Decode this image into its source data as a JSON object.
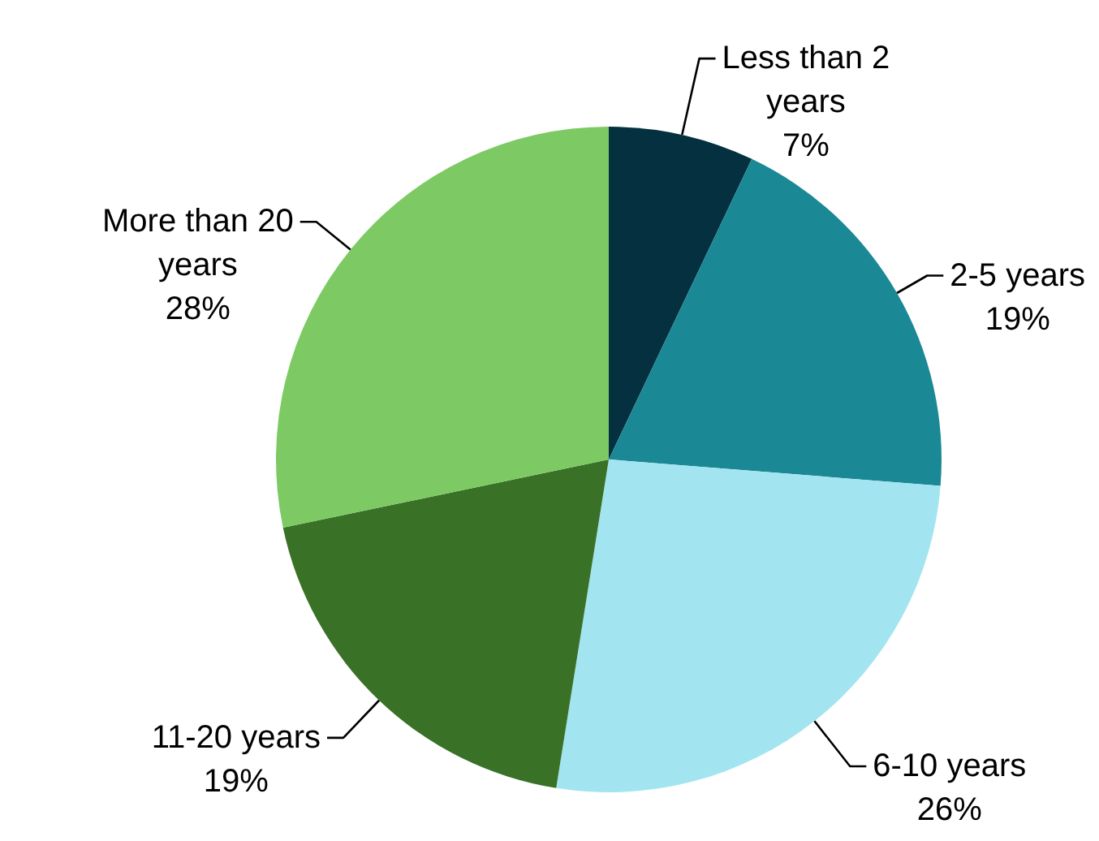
{
  "chart_data": {
    "type": "pie",
    "categories": [
      "Less than 2 years",
      "2-5 years",
      "6-10 years",
      "11-20 years",
      "More than 20 years"
    ],
    "values": [
      7,
      19,
      26,
      19,
      28
    ],
    "value_labels": [
      "7%",
      "19%",
      "26%",
      "19%",
      "28%"
    ],
    "colors": [
      "#04303f",
      "#1a8895",
      "#a2e5f0",
      "#397127",
      "#7dca64"
    ]
  }
}
